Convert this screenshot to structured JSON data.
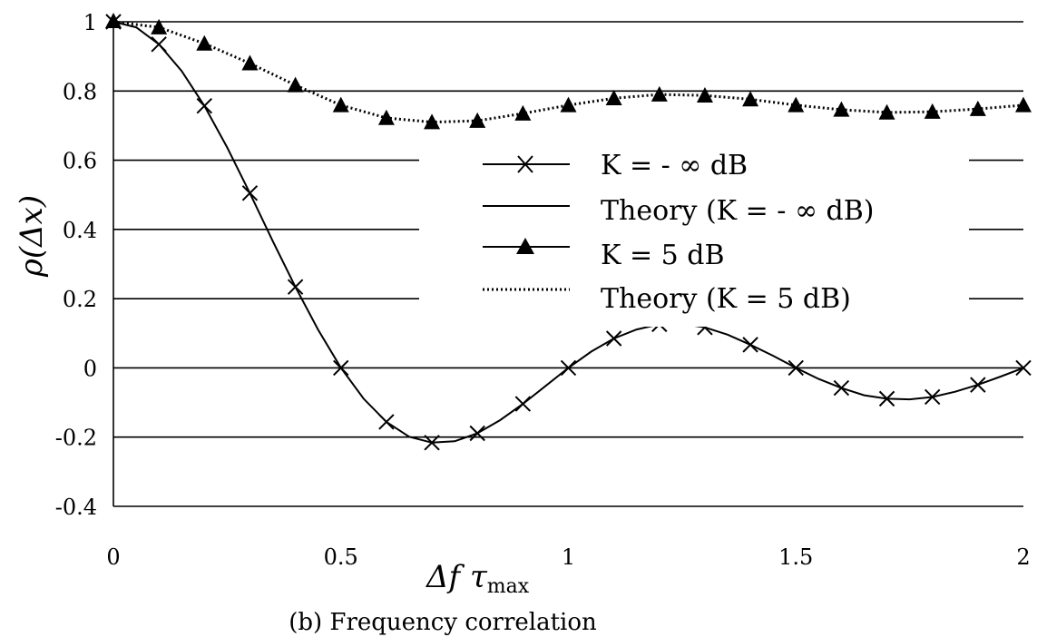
{
  "chart_data": {
    "type": "line",
    "caption": "(b) Frequency correlation",
    "xlabel": {
      "main": "Δf τ",
      "sub": "max"
    },
    "ylabel": {
      "main": "ρ(Δx)"
    },
    "xlim": [
      0,
      2
    ],
    "ylim": [
      -0.4,
      1
    ],
    "x_ticks": [
      "0",
      "0.5",
      "1",
      "1.5",
      "2"
    ],
    "y_ticks": [
      "-0.4",
      "-0.2",
      "0",
      "0.2",
      "0.4",
      "0.6",
      "0.8",
      "1"
    ],
    "grid": "horizontal",
    "legend_position": "center-right",
    "legend": [
      {
        "label": "K = - ∞ dB",
        "style": "solid-x-marker"
      },
      {
        "label": "Theory (K = - ∞ dB)",
        "style": "solid"
      },
      {
        "label": "K = 5 dB",
        "style": "solid-triangle-marker"
      },
      {
        "label": "Theory (K = 5 dB)",
        "style": "dotted"
      }
    ],
    "series": [
      {
        "name": "K = - ∞ dB",
        "marker": "x",
        "x": [
          0,
          0.1,
          0.2,
          0.3,
          0.4,
          0.5,
          0.6,
          0.7,
          0.8,
          0.9,
          1.0,
          1.1,
          1.2,
          1.3,
          1.4,
          1.5,
          1.6,
          1.7,
          1.8,
          1.9,
          2.0
        ],
        "y": [
          1.0,
          0.935,
          0.757,
          0.505,
          0.234,
          0.0,
          -0.156,
          -0.216,
          -0.189,
          -0.104,
          0.0,
          0.085,
          0.126,
          0.117,
          0.067,
          0.0,
          -0.058,
          -0.089,
          -0.084,
          -0.049,
          0.0
        ]
      },
      {
        "name": "Theory (K = - ∞ dB)",
        "line": "solid",
        "x": [
          0,
          0.05,
          0.1,
          0.15,
          0.2,
          0.25,
          0.3,
          0.35,
          0.4,
          0.45,
          0.5,
          0.55,
          0.6,
          0.65,
          0.7,
          0.75,
          0.8,
          0.85,
          0.9,
          0.95,
          1.0,
          1.05,
          1.1,
          1.15,
          1.2,
          1.25,
          1.3,
          1.35,
          1.4,
          1.45,
          1.5,
          1.55,
          1.6,
          1.65,
          1.7,
          1.75,
          1.8,
          1.85,
          1.9,
          1.95,
          2.0
        ],
        "y": [
          1.0,
          0.984,
          0.935,
          0.858,
          0.757,
          0.637,
          0.505,
          0.367,
          0.234,
          0.11,
          0.0,
          -0.089,
          -0.156,
          -0.199,
          -0.216,
          -0.212,
          -0.189,
          -0.151,
          -0.104,
          -0.052,
          0.0,
          0.047,
          0.085,
          0.111,
          0.126,
          0.127,
          0.117,
          0.096,
          0.067,
          0.035,
          0.0,
          -0.032,
          -0.058,
          -0.079,
          -0.089,
          -0.091,
          -0.084,
          -0.069,
          -0.049,
          -0.025,
          0.0
        ]
      },
      {
        "name": "K = 5 dB",
        "marker": "triangle",
        "x": [
          0,
          0.1,
          0.2,
          0.3,
          0.4,
          0.5,
          0.6,
          0.7,
          0.8,
          0.9,
          1.0,
          1.1,
          1.2,
          1.3,
          1.4,
          1.5,
          1.6,
          1.7,
          1.8,
          1.9,
          2.0
        ],
        "y": [
          1.0,
          0.982,
          0.935,
          0.878,
          0.815,
          0.757,
          0.72,
          0.708,
          0.712,
          0.733,
          0.757,
          0.777,
          0.788,
          0.785,
          0.774,
          0.757,
          0.744,
          0.736,
          0.738,
          0.746,
          0.757
        ]
      },
      {
        "name": "Theory (K = 5 dB)",
        "line": "dotted",
        "x": [
          0,
          0.1,
          0.2,
          0.3,
          0.4,
          0.5,
          0.6,
          0.7,
          0.8,
          0.9,
          1.0,
          1.1,
          1.2,
          1.3,
          1.4,
          1.5,
          1.6,
          1.7,
          1.8,
          1.9,
          2.0
        ],
        "y": [
          1.0,
          0.984,
          0.937,
          0.88,
          0.817,
          0.759,
          0.722,
          0.71,
          0.714,
          0.735,
          0.759,
          0.779,
          0.79,
          0.787,
          0.776,
          0.759,
          0.746,
          0.738,
          0.74,
          0.748,
          0.759
        ]
      }
    ]
  }
}
